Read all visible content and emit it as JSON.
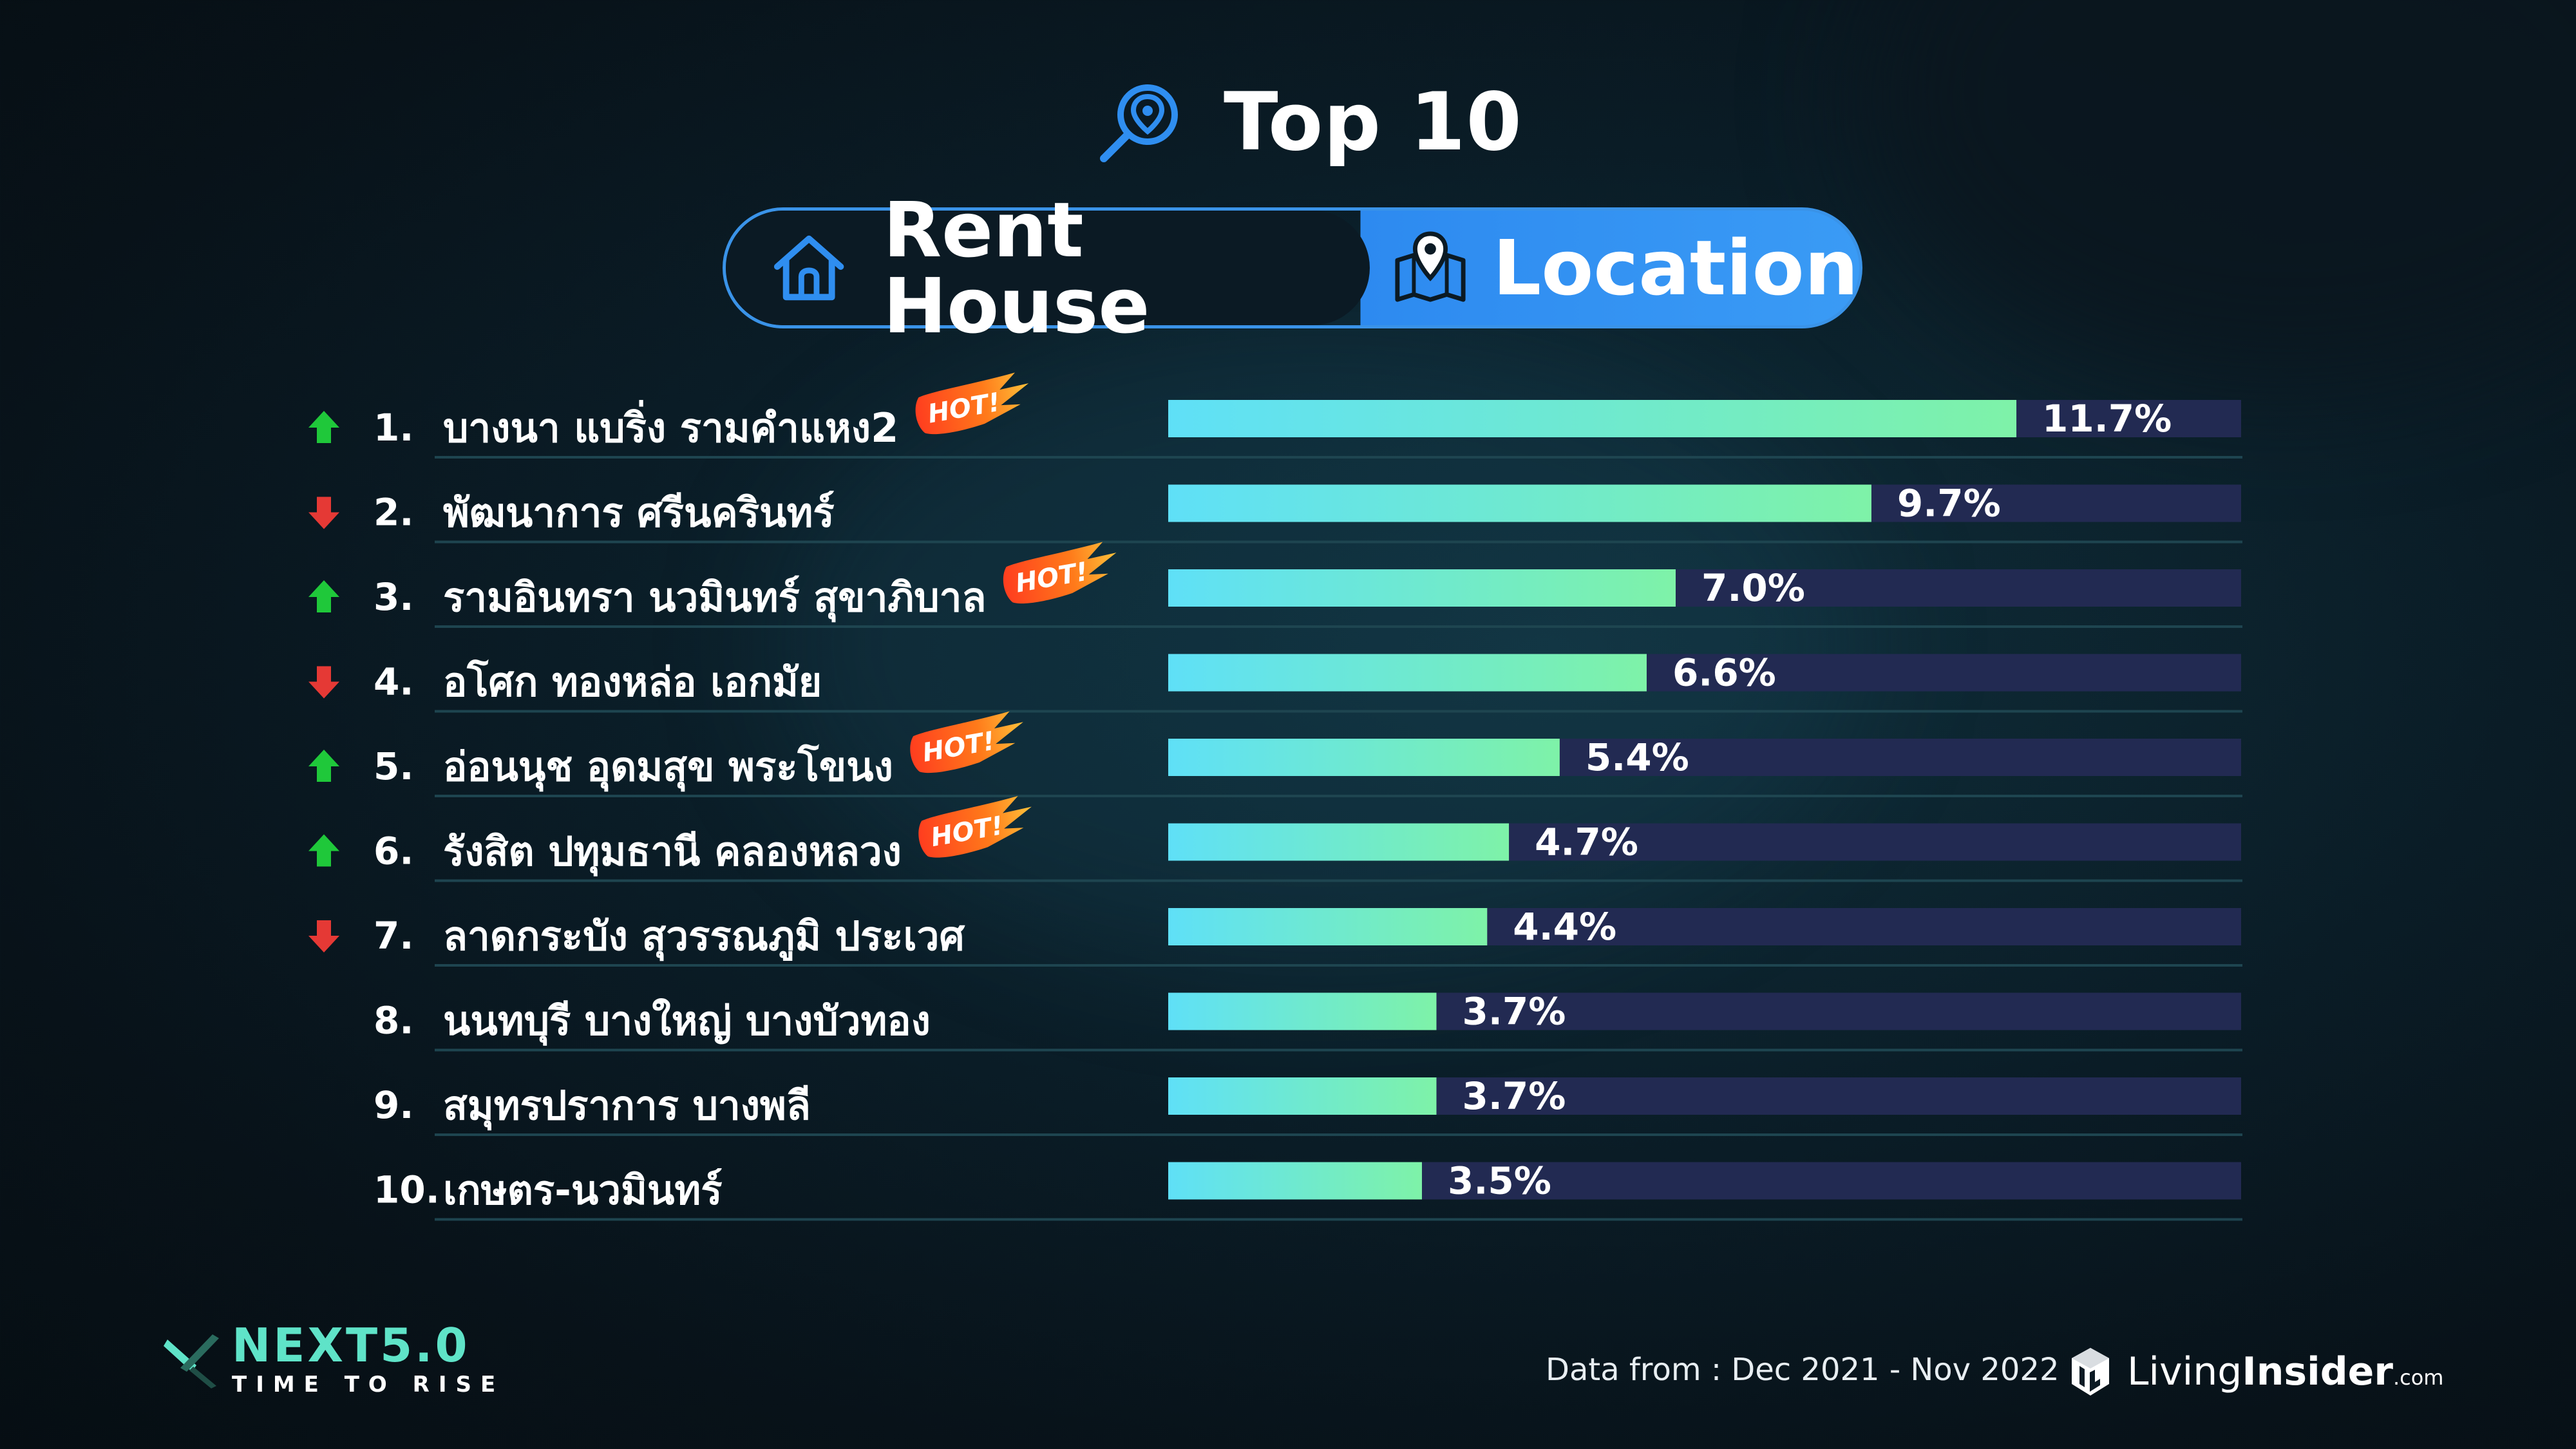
{
  "header": {
    "title": "Top 10",
    "tab_left": "Rent House",
    "tab_right": "Location",
    "icons": {
      "title": "location-search-icon",
      "left": "house-icon",
      "right": "map-pin-icon"
    }
  },
  "chart_data": {
    "type": "bar",
    "orientation": "horizontal",
    "title": "",
    "xlabel": "",
    "ylabel": "",
    "xlim": [
      0,
      14.8
    ],
    "grid": false,
    "legend": "none",
    "unit": "%",
    "categories": [
      "บางนา แบริ่ง รามคำแหง2",
      "พัฒนาการ ศรีนครินทร์",
      "รามอินทรา นวมินทร์ สุขาภิบาล",
      " อโศก ทองหล่อ เอกมัย",
      "อ่อนนุช อุดมสุข พระโขนง",
      "รังสิต ปทุมธานี คลองหลวง",
      "ลาดกระบัง สุวรรณภูมิ ประเวศ",
      "นนทบุรี บางใหญ่ บางบัวทอง",
      "สมุทรปราการ บางพลี",
      "เกษตร-นวมินทร์"
    ],
    "ranks": [
      "1.",
      "2.",
      "3.",
      "4.",
      "5.",
      "6.",
      "7.",
      "8.",
      "9.",
      "10."
    ],
    "values": [
      11.7,
      9.7,
      7.0,
      6.6,
      5.4,
      4.7,
      4.4,
      3.7,
      3.7,
      3.5
    ],
    "value_labels": [
      "11.7%",
      "9.7%",
      "7.0%",
      "6.6%",
      "5.4%",
      "4.7%",
      "4.4%",
      "3.7%",
      "3.7%",
      "3.5%"
    ],
    "trend": [
      "up",
      "down",
      "up",
      "down",
      "up",
      "up",
      "down",
      "none",
      "none",
      "none"
    ],
    "hot_badges": [
      true,
      false,
      true,
      false,
      true,
      true,
      false,
      false,
      false,
      false
    ],
    "hot_label": "HOT!",
    "colors": {
      "bar_start": "#5fe0f7",
      "bar_end": "#7ef2a8",
      "track": "#222a52",
      "up": "#1fc83a",
      "down": "#e53935",
      "separator": "#1e4550"
    }
  },
  "footer": {
    "brand_left_big": "NEXT5.0",
    "brand_left_small": "TIME TO RISE",
    "data_source": "Data from : Dec 2021 - Nov 2022",
    "brand_right_light": "Living",
    "brand_right_bold": "Insider",
    "brand_right_suffix": ".com"
  }
}
